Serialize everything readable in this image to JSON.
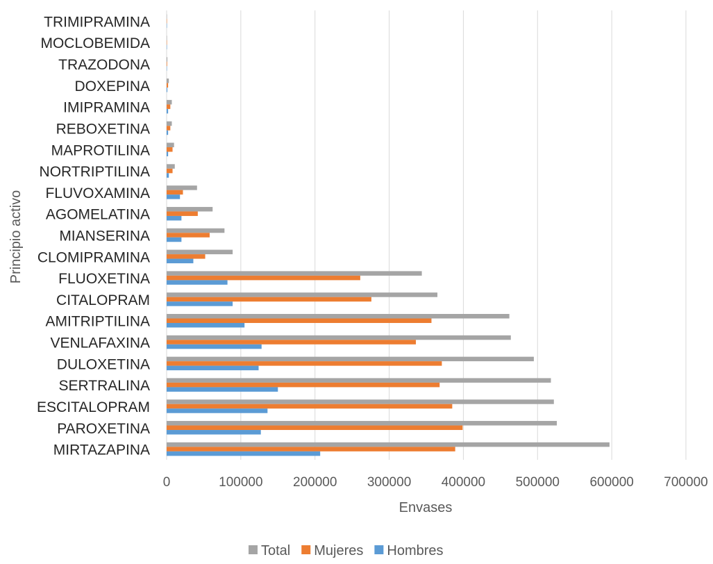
{
  "chart_data": {
    "type": "bar",
    "orientation": "horizontal",
    "categories": [
      "MIRTAZAPINA",
      "PAROXETINA",
      "ESCITALOPRAM",
      "SERTRALINA",
      "DULOXETINA",
      "VENLAFAXINA",
      "AMITRIPTILINA",
      "CITALOPRAM",
      "FLUOXETINA",
      "CLOMIPRAMINA",
      "MIANSERINA",
      "AGOMELATINA",
      "FLUVOXAMINA",
      "NORTRIPTILINA",
      "MAPROTILINA",
      "REBOXETINA",
      "IMIPRAMINA",
      "DOXEPINA",
      "TRAZODONA",
      "MOCLOBEMIDA",
      "TRIMIPRAMINA"
    ],
    "series": [
      {
        "name": "Total",
        "color": "#a5a5a5",
        "values": [
          597000,
          526000,
          522000,
          518000,
          495000,
          464000,
          462000,
          365000,
          344000,
          89000,
          78000,
          62000,
          41000,
          11000,
          10000,
          7000,
          7000,
          3000,
          1000,
          500,
          300
        ]
      },
      {
        "name": "Mujeres",
        "color": "#ed7d31",
        "values": [
          389000,
          399000,
          385000,
          368000,
          371000,
          336000,
          357000,
          276000,
          261000,
          52000,
          58000,
          42000,
          22000,
          8000,
          8000,
          5000,
          5000,
          2000,
          700,
          300,
          200
        ]
      },
      {
        "name": "Hombres",
        "color": "#5b9bd5",
        "values": [
          207000,
          127000,
          136000,
          150000,
          124000,
          128000,
          105000,
          89000,
          82000,
          36000,
          20000,
          20000,
          18000,
          3000,
          2000,
          2000,
          2000,
          1000,
          300,
          200,
          100
        ]
      }
    ],
    "xlabel": "Envases",
    "ylabel": "Principio activo",
    "xlim": [
      0,
      700000
    ],
    "xticks": [
      "0",
      "100000",
      "200000",
      "300000",
      "400000",
      "500000",
      "600000",
      "700000"
    ],
    "grid": true,
    "legend_position": "bottom"
  }
}
